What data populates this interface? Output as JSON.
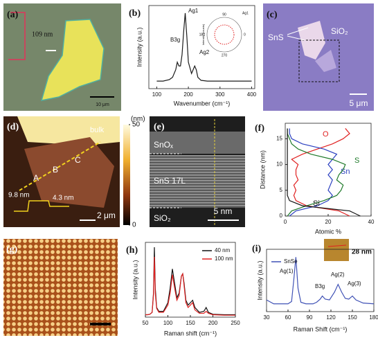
{
  "panels": {
    "a": {
      "label": "(a)",
      "step_height": "109 nm",
      "scale_bar": "10 μm"
    },
    "b": {
      "label": "(b)",
      "chart": {
        "type": "line",
        "x_label": "Wavenumber (cm⁻¹)",
        "y_label": "Intensity (a.u.)",
        "x": [
          100,
          120,
          140,
          150,
          160,
          165,
          170,
          175,
          180,
          185,
          190,
          195,
          200,
          210,
          215,
          220,
          225,
          230,
          240,
          260,
          300,
          350,
          400
        ],
        "series": [
          {
            "color": "#1a1a1a",
            "values": [
              0.1,
              0.1,
              0.12,
              0.15,
              0.25,
              0.35,
              0.3,
              0.3,
              0.45,
              0.75,
              1.0,
              0.7,
              0.35,
              0.2,
              0.25,
              0.3,
              0.25,
              0.15,
              0.11,
              0.1,
              0.1,
              0.1,
              0.1
            ]
          }
        ],
        "xlim": [
          75,
          410
        ],
        "xticks": [
          100,
          200,
          300,
          400
        ],
        "ylim": [
          0,
          1.1
        ],
        "annotations": [
          "B3g",
          "Ag1",
          "Ag2"
        ]
      },
      "inset": {
        "y_label": "Intensity (counts)",
        "peak": "Ag1",
        "angles": [
          90,
          0,
          180,
          270
        ]
      }
    },
    "c": {
      "label": "(c)",
      "material": "SnS",
      "substrate": "SiO₂",
      "scale_bar": "5 μm"
    },
    "d": {
      "label": "(d)",
      "bulk": "bulk",
      "points": [
        "A",
        "B",
        "C"
      ],
      "step_heights": [
        "9.8 nm",
        "4.3 nm"
      ],
      "scale_bar": "2 μm",
      "colorbar": {
        "unit": "(nm)",
        "lim": [
          0,
          50
        ],
        "ticks": [
          50,
          0
        ]
      }
    },
    "e": {
      "label": "(e)",
      "layers": [
        "SnOₓ",
        "SnS 17L",
        "SiO₂"
      ],
      "scale_bar": "5 nm"
    },
    "f": {
      "label": "(f)",
      "chart": {
        "type": "line",
        "orientation": "horizontal",
        "x_label": "Atomic %",
        "y_label": "Distance (nm)",
        "y": [
          0,
          1,
          2,
          3,
          4,
          5,
          6,
          7,
          8,
          9,
          10,
          11,
          12,
          13,
          14,
          15,
          16,
          17
        ],
        "series": [
          {
            "name": "O",
            "color": "#e02020",
            "values": [
              30,
              25,
              10,
              5,
              4,
              5,
              4,
              6,
              5,
              5,
              6,
              3,
              8,
              15,
              22,
              27,
              30,
              28
            ]
          },
          {
            "name": "Sn",
            "color": "#2a3fc0",
            "values": [
              2,
              5,
              15,
              20,
              22,
              20,
              21,
              22,
              20,
              22,
              20,
              22,
              24,
              18,
              8,
              3,
              2,
              2
            ]
          },
          {
            "name": "S",
            "color": "#1f7a2a",
            "values": [
              1,
              3,
              10,
              18,
              24,
              26,
              27,
              24,
              25,
              27,
              28,
              22,
              12,
              6,
              3,
              2,
              1,
              1
            ]
          },
          {
            "name": "Si",
            "color": "#111111",
            "values": [
              35,
              30,
              8,
              2,
              1,
              1,
              1,
              1,
              1,
              1,
              1,
              1,
              1,
              1,
              1,
              1,
              1,
              1
            ]
          }
        ],
        "xlim": [
          0,
          40
        ],
        "xticks": [
          0,
          20,
          40
        ],
        "ylim": [
          0,
          18
        ],
        "yticks": [
          0,
          5,
          10,
          15
        ]
      }
    },
    "g": {
      "label": "(g)"
    },
    "h": {
      "label": "(h)",
      "chart": {
        "type": "line",
        "x_label": "Raman shift (cm⁻¹)",
        "y_label": "Intensity (a.u.)",
        "x": [
          50,
          55,
          60,
          65,
          68,
          70,
          72,
          75,
          80,
          90,
          100,
          105,
          110,
          115,
          120,
          125,
          130,
          133,
          136,
          140,
          145,
          150,
          155,
          160,
          170,
          180,
          185,
          190,
          200,
          225,
          250
        ],
        "series": [
          {
            "name": "40 nm",
            "color": "#111111",
            "values": [
              0.05,
              0.05,
              0.06,
              0.1,
              0.5,
              1.45,
              0.6,
              0.2,
              0.12,
              0.12,
              0.3,
              0.6,
              1.0,
              0.7,
              0.4,
              0.5,
              0.85,
              0.9,
              0.7,
              0.35,
              0.25,
              0.3,
              0.35,
              0.2,
              0.1,
              0.12,
              0.2,
              0.1,
              0.06,
              0.05,
              0.05
            ]
          },
          {
            "name": "100 nm",
            "color": "#e02020",
            "values": [
              0.05,
              0.05,
              0.06,
              0.1,
              0.45,
              1.25,
              0.5,
              0.18,
              0.1,
              0.1,
              0.25,
              0.5,
              0.88,
              0.6,
              0.35,
              0.45,
              0.85,
              0.9,
              0.65,
              0.3,
              0.2,
              0.25,
              0.3,
              0.15,
              0.08,
              0.08,
              0.12,
              0.08,
              0.05,
              0.04,
              0.04
            ]
          }
        ],
        "xlim": [
          50,
          250
        ],
        "xticks": [
          50,
          100,
          150,
          200,
          250
        ],
        "ylim": [
          0,
          1.55
        ],
        "legend": "upper right"
      }
    },
    "i": {
      "label": "(i)",
      "chart": {
        "type": "line",
        "x_label": "Raman Shift (cm⁻¹)",
        "y_label": "Intensity (a.u.)",
        "x": [
          30,
          40,
          50,
          60,
          65,
          68,
          71,
          74,
          78,
          85,
          95,
          100,
          105,
          108,
          112,
          118,
          125,
          130,
          135,
          140,
          145,
          150,
          155,
          165,
          180
        ],
        "series": [
          {
            "name": "SnSe",
            "color": "#3f51b5",
            "values": [
              0.35,
              0.3,
              0.3,
              0.3,
              0.33,
              0.6,
              0.9,
              0.5,
              0.32,
              0.3,
              0.3,
              0.32,
              0.36,
              0.4,
              0.36,
              0.35,
              0.45,
              0.55,
              0.45,
              0.37,
              0.36,
              0.4,
              0.35,
              0.31,
              0.3
            ]
          }
        ],
        "xlim": [
          30,
          180
        ],
        "xticks": [
          30,
          60,
          90,
          120,
          150,
          180
        ],
        "ylim": [
          0.2,
          1.0
        ],
        "legend": "upper left",
        "annotations": [
          "Ag(1)",
          "B3g",
          "Ag(2)",
          "Ag(3)"
        ]
      },
      "inset": {
        "thickness": "28 nm"
      }
    }
  }
}
